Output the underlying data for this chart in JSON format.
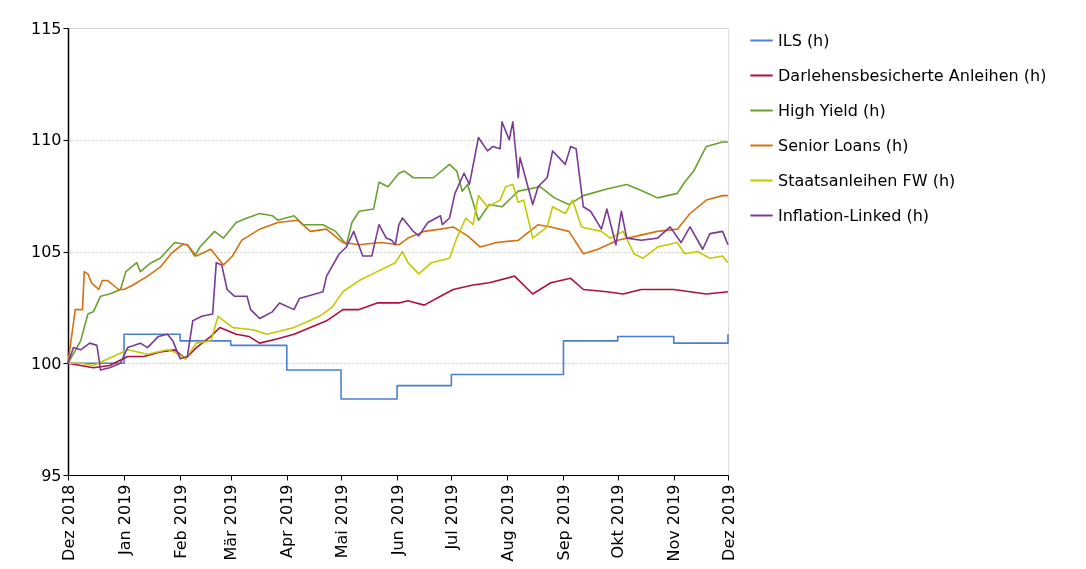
{
  "chart_data": {
    "type": "line",
    "xlim": [
      "2018-12-01",
      "2019-12-01"
    ],
    "xticks": [
      {
        "value": "2018-12-01",
        "label": "Dez 2018"
      },
      {
        "value": "2019-01-01",
        "label": "Jan 2019"
      },
      {
        "value": "2019-02-01",
        "label": "Feb 2019"
      },
      {
        "value": "2019-03-01",
        "label": "Mär 2019"
      },
      {
        "value": "2019-04-01",
        "label": "Apr 2019"
      },
      {
        "value": "2019-05-01",
        "label": "Mai 2019"
      },
      {
        "value": "2019-06-01",
        "label": "Jun 2019"
      },
      {
        "value": "2019-07-01",
        "label": "Jul 2019"
      },
      {
        "value": "2019-08-01",
        "label": "Aug 2019"
      },
      {
        "value": "2019-09-01",
        "label": "Sep 2019"
      },
      {
        "value": "2019-10-01",
        "label": "Okt 2019"
      },
      {
        "value": "2019-11-01",
        "label": "Nov 2019"
      },
      {
        "value": "2019-12-01",
        "label": "Dez 2019"
      }
    ],
    "ylim": [
      95,
      115
    ],
    "yticks": [
      95,
      100,
      105,
      110,
      115
    ],
    "grid": "y",
    "legend": "right",
    "series": [
      {
        "name": "ILS (h)",
        "type": "step",
        "color": "#4a7fd4",
        "x": [
          "2018-12-01",
          "2019-01-01",
          "2019-02-01",
          "2019-03-01",
          "2019-04-01",
          "2019-05-01",
          "2019-06-01",
          "2019-07-01",
          "2019-09-01",
          "2019-10-01",
          "2019-11-01",
          "2019-12-01"
        ],
        "values": [
          100,
          101.3,
          101.0,
          100.8,
          99.7,
          98.4,
          99.0,
          99.5,
          101.0,
          101.2,
          100.9,
          101.3
        ]
      },
      {
        "name": "Darlehensbesicherte Anleihen (h)",
        "color": "#b0103a",
        "x": [
          "2018-12-01",
          "2018-12-15",
          "2018-12-24",
          "2019-01-03",
          "2019-01-12",
          "2019-01-21",
          "2019-01-29",
          "2019-02-04",
          "2019-02-10",
          "2019-02-18",
          "2019-02-23",
          "2019-03-04",
          "2019-03-11",
          "2019-03-17",
          "2019-03-27",
          "2019-04-05",
          "2019-04-14",
          "2019-04-23",
          "2019-05-02",
          "2019-05-11",
          "2019-05-21",
          "2019-06-02",
          "2019-06-07",
          "2019-06-16",
          "2019-06-25",
          "2019-07-02",
          "2019-07-13",
          "2019-07-22",
          "2019-08-05",
          "2019-08-15",
          "2019-08-25",
          "2019-09-05",
          "2019-09-12",
          "2019-09-25",
          "2019-10-04",
          "2019-10-14",
          "2019-11-01",
          "2019-11-19",
          "2019-12-01"
        ],
        "values": [
          100,
          99.8,
          99.9,
          100.3,
          100.3,
          100.5,
          100.6,
          100.2,
          100.7,
          101.2,
          101.6,
          101.3,
          101.2,
          100.9,
          101.1,
          101.3,
          101.6,
          101.9,
          102.4,
          102.4,
          102.7,
          102.7,
          102.8,
          102.6,
          103.0,
          103.3,
          103.5,
          103.6,
          103.9,
          103.1,
          103.6,
          103.8,
          103.3,
          103.2,
          103.1,
          103.3,
          103.3,
          103.1,
          103.2
        ]
      },
      {
        "name": "High Yield (h)",
        "color": "#6aa12f",
        "x": [
          "2018-12-01",
          "2018-12-08",
          "2018-12-12",
          "2018-12-15",
          "2018-12-19",
          "2018-12-24",
          "2018-12-30",
          "2019-01-02",
          "2019-01-08",
          "2019-01-10",
          "2019-01-16",
          "2019-01-21",
          "2019-01-29",
          "2019-02-05",
          "2019-02-09",
          "2019-02-12",
          "2019-02-20",
          "2019-02-25",
          "2019-03-04",
          "2019-03-10",
          "2019-03-17",
          "2019-03-24",
          "2019-03-27",
          "2019-04-05",
          "2019-04-10",
          "2019-04-21",
          "2019-04-28",
          "2019-05-04",
          "2019-05-07",
          "2019-05-11",
          "2019-05-19",
          "2019-05-22",
          "2019-05-27",
          "2019-06-02",
          "2019-06-05",
          "2019-06-10",
          "2019-06-21",
          "2019-06-30",
          "2019-07-04",
          "2019-07-07",
          "2019-07-10",
          "2019-07-16",
          "2019-07-22",
          "2019-07-29",
          "2019-08-07",
          "2019-08-19",
          "2019-08-27",
          "2019-09-04",
          "2019-09-12",
          "2019-09-25",
          "2019-10-06",
          "2019-10-15",
          "2019-10-23",
          "2019-11-03",
          "2019-11-07",
          "2019-11-12",
          "2019-11-19",
          "2019-11-28",
          "2019-12-01"
        ],
        "values": [
          100,
          101.0,
          102.2,
          102.3,
          103.0,
          103.1,
          103.3,
          104.1,
          104.5,
          104.1,
          104.5,
          104.7,
          105.4,
          105.3,
          104.8,
          105.2,
          105.9,
          105.6,
          106.3,
          106.5,
          106.7,
          106.6,
          106.4,
          106.6,
          106.2,
          106.2,
          105.9,
          105.3,
          106.3,
          106.8,
          106.9,
          108.1,
          107.9,
          108.5,
          108.6,
          108.3,
          108.3,
          108.9,
          108.6,
          107.7,
          108.0,
          106.4,
          107.1,
          107.0,
          107.7,
          107.9,
          107.4,
          107.1,
          107.5,
          107.8,
          108.0,
          107.7,
          107.4,
          107.6,
          108.1,
          108.6,
          109.7,
          109.9,
          109.9
        ]
      },
      {
        "name": "Senior Loans (h)",
        "color": "#d6700f",
        "x": [
          "2018-12-01",
          "2018-12-05",
          "2018-12-09",
          "2018-12-10",
          "2018-12-12",
          "2018-12-14",
          "2018-12-18",
          "2018-12-20",
          "2018-12-23",
          "2018-12-29",
          "2019-01-01",
          "2019-01-06",
          "2019-01-14",
          "2019-01-21",
          "2019-01-27",
          "2019-02-02",
          "2019-02-05",
          "2019-02-10",
          "2019-02-18",
          "2019-02-25",
          "2019-03-02",
          "2019-03-07",
          "2019-03-17",
          "2019-03-27",
          "2019-04-07",
          "2019-04-14",
          "2019-04-23",
          "2019-05-02",
          "2019-05-11",
          "2019-05-23",
          "2019-06-02",
          "2019-06-07",
          "2019-06-16",
          "2019-06-25",
          "2019-07-02",
          "2019-07-10",
          "2019-07-17",
          "2019-07-26",
          "2019-08-07",
          "2019-08-18",
          "2019-08-25",
          "2019-09-04",
          "2019-09-12",
          "2019-09-20",
          "2019-10-01",
          "2019-10-12",
          "2019-10-23",
          "2019-11-03",
          "2019-11-10",
          "2019-11-19",
          "2019-11-28",
          "2019-12-01"
        ],
        "values": [
          100,
          102.4,
          102.4,
          104.1,
          104.0,
          103.6,
          103.3,
          103.7,
          103.7,
          103.3,
          103.3,
          103.5,
          103.9,
          104.3,
          104.9,
          105.3,
          105.3,
          104.8,
          105.1,
          104.4,
          104.8,
          105.5,
          106.0,
          106.3,
          106.4,
          105.9,
          106.0,
          105.4,
          105.3,
          105.4,
          105.3,
          105.6,
          105.9,
          106.0,
          106.1,
          105.7,
          105.2,
          105.4,
          105.5,
          106.2,
          106.1,
          105.9,
          104.9,
          105.1,
          105.5,
          105.7,
          105.9,
          106.0,
          106.7,
          107.3,
          107.5,
          107.5
        ]
      },
      {
        "name": "Staatsanleihen FW (h)",
        "color": "#c5c900",
        "x": [
          "2018-12-01",
          "2018-12-08",
          "2018-12-15",
          "2018-12-26",
          "2019-01-03",
          "2019-01-14",
          "2019-01-25",
          "2019-01-29",
          "2019-02-04",
          "2019-02-10",
          "2019-02-18",
          "2019-02-22",
          "2019-03-02",
          "2019-03-13",
          "2019-03-21",
          "2019-04-05",
          "2019-04-19",
          "2019-04-26",
          "2019-05-02",
          "2019-05-11",
          "2019-05-21",
          "2019-05-31",
          "2019-06-04",
          "2019-06-07",
          "2019-06-13",
          "2019-06-20",
          "2019-06-30",
          "2019-07-04",
          "2019-07-09",
          "2019-07-13",
          "2019-07-16",
          "2019-07-21",
          "2019-07-28",
          "2019-07-31",
          "2019-08-04",
          "2019-08-07",
          "2019-08-10",
          "2019-08-15",
          "2019-08-23",
          "2019-08-26",
          "2019-09-02",
          "2019-09-06",
          "2019-09-11",
          "2019-09-22",
          "2019-09-27",
          "2019-10-04",
          "2019-10-10",
          "2019-10-15",
          "2019-10-23",
          "2019-11-03",
          "2019-11-07",
          "2019-11-14",
          "2019-11-21",
          "2019-11-28",
          "2019-12-01"
        ],
        "values": [
          100,
          100.0,
          99.9,
          100.3,
          100.6,
          100.4,
          100.6,
          100.5,
          100.2,
          100.9,
          101.0,
          102.1,
          101.6,
          101.5,
          101.3,
          101.6,
          102.1,
          102.5,
          103.2,
          103.7,
          104.1,
          104.5,
          105.0,
          104.5,
          104.0,
          104.5,
          104.7,
          105.6,
          106.5,
          106.2,
          107.5,
          107.0,
          107.3,
          107.9,
          108.0,
          107.2,
          107.3,
          105.6,
          106.1,
          107.0,
          106.7,
          107.3,
          106.1,
          105.9,
          105.6,
          105.9,
          104.9,
          104.7,
          105.2,
          105.4,
          104.9,
          105.0,
          104.7,
          104.8,
          104.5
        ]
      },
      {
        "name": "Inflation-Linked (h)",
        "color": "#7b3a96",
        "x": [
          "2018-12-01",
          "2018-12-04",
          "2018-12-08",
          "2018-12-13",
          "2018-12-17",
          "2018-12-19",
          "2018-12-24",
          "2018-12-30",
          "2019-01-03",
          "2019-01-10",
          "2019-01-14",
          "2019-01-20",
          "2019-01-25",
          "2019-01-28",
          "2019-02-01",
          "2019-02-05",
          "2019-02-08",
          "2019-02-13",
          "2019-02-19",
          "2019-02-21",
          "2019-02-24",
          "2019-02-27",
          "2019-03-03",
          "2019-03-10",
          "2019-03-12",
          "2019-03-17",
          "2019-03-24",
          "2019-03-28",
          "2019-04-05",
          "2019-04-08",
          "2019-04-21",
          "2019-04-23",
          "2019-04-30",
          "2019-05-04",
          "2019-05-08",
          "2019-05-13",
          "2019-05-18",
          "2019-05-22",
          "2019-05-26",
          "2019-05-29",
          "2019-05-31",
          "2019-06-02",
          "2019-06-04",
          "2019-06-10",
          "2019-06-13",
          "2019-06-18",
          "2019-06-25",
          "2019-06-26",
          "2019-06-30",
          "2019-07-03",
          "2019-07-08",
          "2019-07-11",
          "2019-07-16",
          "2019-07-21",
          "2019-07-24",
          "2019-07-28",
          "2019-07-29",
          "2019-08-02",
          "2019-08-04",
          "2019-08-07",
          "2019-08-08",
          "2019-08-11",
          "2019-08-15",
          "2019-08-18",
          "2019-08-23",
          "2019-08-26",
          "2019-09-02",
          "2019-09-05",
          "2019-09-08",
          "2019-09-12",
          "2019-09-16",
          "2019-09-22",
          "2019-09-25",
          "2019-09-30",
          "2019-10-03",
          "2019-10-06",
          "2019-10-14",
          "2019-10-23",
          "2019-10-30",
          "2019-11-05",
          "2019-11-10",
          "2019-11-17",
          "2019-11-21",
          "2019-11-28",
          "2019-12-01"
        ],
        "values": [
          100,
          100.7,
          100.6,
          100.9,
          100.8,
          99.7,
          99.8,
          100.0,
          100.7,
          100.9,
          100.7,
          101.2,
          101.3,
          101.0,
          100.2,
          100.3,
          101.9,
          102.1,
          102.2,
          104.5,
          104.4,
          103.3,
          103.0,
          103.0,
          102.4,
          102.0,
          102.3,
          102.7,
          102.4,
          102.9,
          103.2,
          103.9,
          104.9,
          105.2,
          105.9,
          104.8,
          104.8,
          106.2,
          105.6,
          105.5,
          105.3,
          106.2,
          106.5,
          105.9,
          105.7,
          106.3,
          106.6,
          106.2,
          106.5,
          107.6,
          108.5,
          108.0,
          110.1,
          109.5,
          109.7,
          109.6,
          110.8,
          110.0,
          110.8,
          108.3,
          109.2,
          108.3,
          107.1,
          107.9,
          108.3,
          109.5,
          108.9,
          109.7,
          109.6,
          107.0,
          106.8,
          106.0,
          106.9,
          105.3,
          106.8,
          105.6,
          105.5,
          105.6,
          106.1,
          105.4,
          106.1,
          105.1,
          105.8,
          105.9,
          105.3
        ]
      }
    ]
  }
}
